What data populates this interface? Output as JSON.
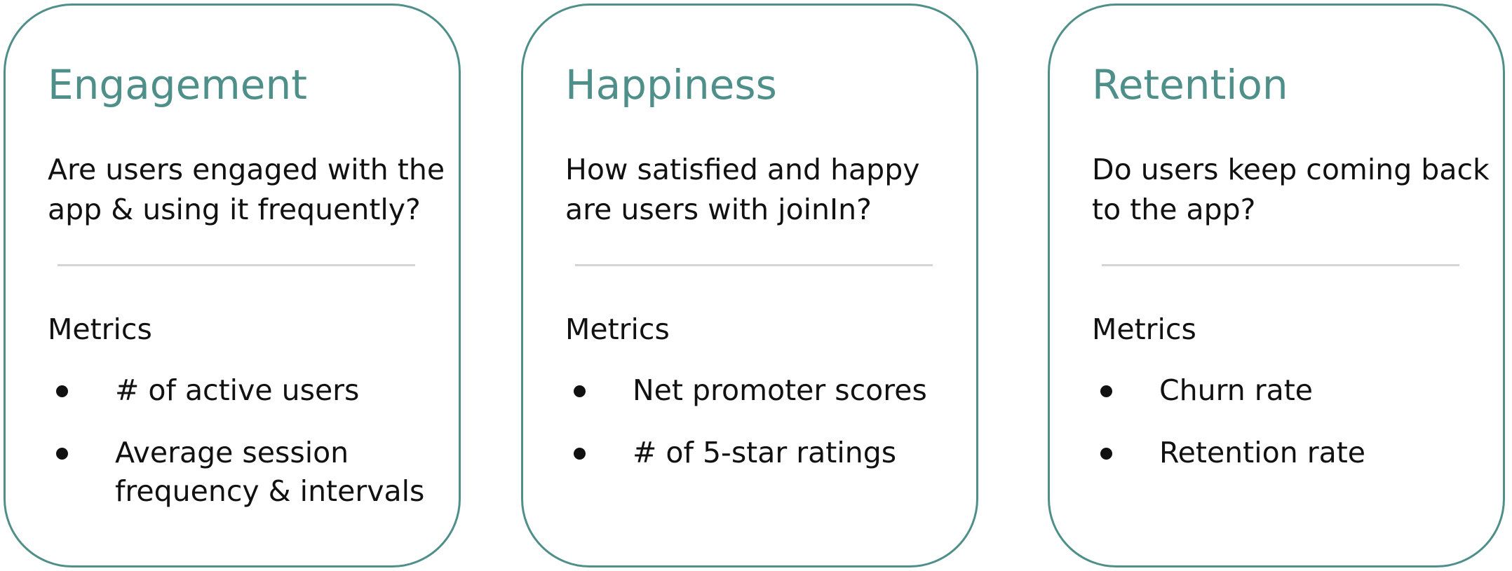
{
  "cards": [
    {
      "title": "Engagement",
      "question": "Are users engaged with the app & using it frequently?",
      "metrics_heading": "Metrics",
      "metrics": [
        "# of active users",
        "Average session frequency & intervals"
      ]
    },
    {
      "title": "Happiness",
      "question": "How satisfied and happy are users with joinIn?",
      "metrics_heading": "Metrics",
      "metrics": [
        "Net promoter scores",
        "# of 5-star ratings"
      ]
    },
    {
      "title": "Retention",
      "question": "Do users keep coming back to the app?",
      "metrics_heading": "Metrics",
      "metrics": [
        "Churn rate",
        "Retention rate"
      ]
    }
  ],
  "colors": {
    "accent": "#4e8f8a",
    "text": "#111111",
    "divider": "#d4d4d4"
  }
}
